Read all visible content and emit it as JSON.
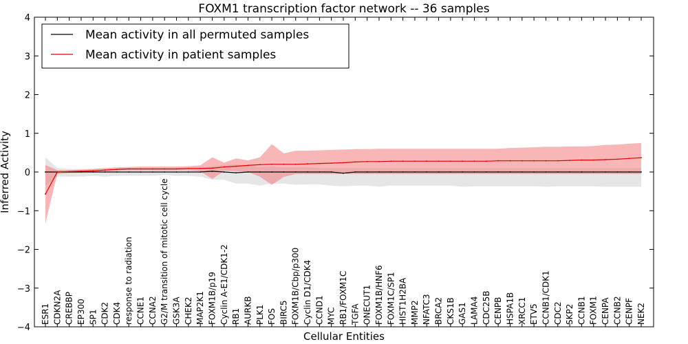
{
  "chart_data": {
    "type": "line",
    "title": "FOXM1 transcription factor network -- 36 samples",
    "xlabel": "Cellular Entities",
    "ylabel": "Inferred Activity",
    "ylim": [
      -4,
      4
    ],
    "yticks": [
      "−4",
      "−3",
      "−2",
      "−1",
      "0",
      "1",
      "2",
      "3",
      "4"
    ],
    "grid": false,
    "legend_position": "top-left",
    "categories": [
      "ESR1",
      "CDKN2A",
      "CREBBP",
      "EP300",
      "SP1",
      "CDK2",
      "CDK4",
      "response to radiation",
      "CCNE1",
      "CCNA2",
      "G2/M transition of mitotic cell cycle",
      "GSK3A",
      "CHEK2",
      "MAP2K1",
      "FOXM1B/p19",
      "Cyclin A-E1/CDK1-2",
      "RB1",
      "AURKB",
      "PLK1",
      "FOS",
      "BIRC5",
      "FOXM1B/Cbp/p300",
      "Cyclin D1/CDK4",
      "CCND1",
      "MYC",
      "RB1/FOXM1C",
      "TGFA",
      "ONECUT1",
      "FOXM1B/HNF6",
      "FOXM1C/SP1",
      "HIST1H2BA",
      "MMP2",
      "NFATC3",
      "BRCA2",
      "CKS1B",
      "GAS1",
      "LAMA4",
      "CDC25B",
      "CENPB",
      "HSPA1B",
      "XRCC1",
      "ETV5",
      "CCNB1/CDK1",
      "CDC2",
      "SKP2",
      "CCNB1",
      "FOXM1",
      "CENPA",
      "CCNB2",
      "CENPF",
      "NEK2"
    ],
    "series": [
      {
        "name": "Mean activity in all permuted samples",
        "color": "#000000",
        "band_color": "#c8c8c8",
        "values": [
          0.0,
          0.0,
          0.0,
          0.0,
          0.0,
          0.0,
          0.0,
          0.0,
          0.0,
          0.0,
          0.0,
          0.0,
          0.0,
          0.0,
          0.02,
          0.0,
          -0.02,
          0.0,
          0.0,
          0.0,
          0.0,
          0.0,
          0.0,
          0.0,
          0.0,
          -0.03,
          0.0,
          0.0,
          0.0,
          0.0,
          0.0,
          0.0,
          0.0,
          0.0,
          0.0,
          0.0,
          0.0,
          0.0,
          0.0,
          0.0,
          0.0,
          0.0,
          0.0,
          0.0,
          0.0,
          0.0,
          0.0,
          0.0,
          0.0,
          0.0,
          0.0
        ],
        "lower": [
          -0.37,
          -0.12,
          -0.12,
          -0.12,
          -0.1,
          -0.12,
          -0.1,
          -0.1,
          -0.1,
          -0.1,
          -0.08,
          -0.1,
          -0.1,
          -0.12,
          -0.2,
          -0.2,
          -0.3,
          -0.3,
          -0.35,
          -0.3,
          -0.3,
          -0.33,
          -0.32,
          -0.32,
          -0.35,
          -0.37,
          -0.35,
          -0.35,
          -0.38,
          -0.35,
          -0.35,
          -0.35,
          -0.35,
          -0.35,
          -0.35,
          -0.38,
          -0.37,
          -0.37,
          -0.37,
          -0.37,
          -0.37,
          -0.37,
          -0.38,
          -0.37,
          -0.37,
          -0.37,
          -0.37,
          -0.38,
          -0.38,
          -0.38,
          -0.38
        ],
        "upper": [
          0.38,
          0.1,
          0.08,
          0.08,
          0.08,
          0.08,
          0.07,
          0.07,
          0.07,
          0.07,
          0.07,
          0.07,
          0.07,
          0.1,
          0.15,
          0.18,
          0.2,
          0.15,
          0.12,
          0.15,
          0.12,
          0.12,
          0.12,
          0.1,
          0.1,
          0.1,
          0.1,
          0.1,
          0.1,
          0.1,
          0.1,
          0.1,
          0.1,
          0.1,
          0.1,
          0.1,
          0.1,
          0.1,
          0.1,
          0.1,
          0.1,
          0.1,
          0.1,
          0.1,
          0.1,
          0.1,
          0.1,
          0.1,
          0.1,
          0.1,
          0.1
        ]
      },
      {
        "name": "Mean activity in patient samples",
        "color": "#e00000",
        "band_color": "#f26d6d",
        "values": [
          -0.57,
          0.0,
          0.01,
          0.02,
          0.03,
          0.05,
          0.07,
          0.08,
          0.08,
          0.08,
          0.08,
          0.08,
          0.09,
          0.09,
          0.1,
          0.13,
          0.15,
          0.17,
          0.19,
          0.2,
          0.2,
          0.2,
          0.21,
          0.22,
          0.23,
          0.24,
          0.26,
          0.27,
          0.27,
          0.28,
          0.28,
          0.28,
          0.28,
          0.28,
          0.28,
          0.28,
          0.28,
          0.28,
          0.29,
          0.29,
          0.29,
          0.29,
          0.29,
          0.29,
          0.3,
          0.31,
          0.31,
          0.32,
          0.33,
          0.35,
          0.37
        ],
        "lower": [
          -1.32,
          -0.05,
          -0.02,
          -0.01,
          0.0,
          0.02,
          0.03,
          0.04,
          0.04,
          0.04,
          0.04,
          0.04,
          0.04,
          0.02,
          -0.18,
          0.03,
          0.02,
          0.0,
          -0.12,
          -0.33,
          -0.13,
          -0.05,
          -0.05,
          -0.05,
          -0.05,
          -0.05,
          -0.05,
          -0.05,
          -0.05,
          -0.05,
          -0.05,
          -0.05,
          -0.05,
          -0.05,
          -0.05,
          -0.05,
          -0.05,
          -0.05,
          -0.05,
          -0.05,
          -0.05,
          -0.05,
          -0.05,
          -0.05,
          -0.05,
          -0.05,
          -0.05,
          -0.05,
          -0.05,
          -0.05,
          -0.05
        ],
        "upper": [
          0.18,
          0.05,
          0.05,
          0.06,
          0.08,
          0.1,
          0.12,
          0.13,
          0.14,
          0.14,
          0.14,
          0.14,
          0.15,
          0.17,
          0.38,
          0.24,
          0.35,
          0.3,
          0.38,
          0.72,
          0.48,
          0.55,
          0.55,
          0.56,
          0.57,
          0.58,
          0.59,
          0.59,
          0.6,
          0.6,
          0.6,
          0.6,
          0.6,
          0.6,
          0.6,
          0.6,
          0.6,
          0.6,
          0.6,
          0.62,
          0.63,
          0.64,
          0.65,
          0.65,
          0.66,
          0.66,
          0.67,
          0.7,
          0.71,
          0.73,
          0.75
        ]
      }
    ]
  }
}
